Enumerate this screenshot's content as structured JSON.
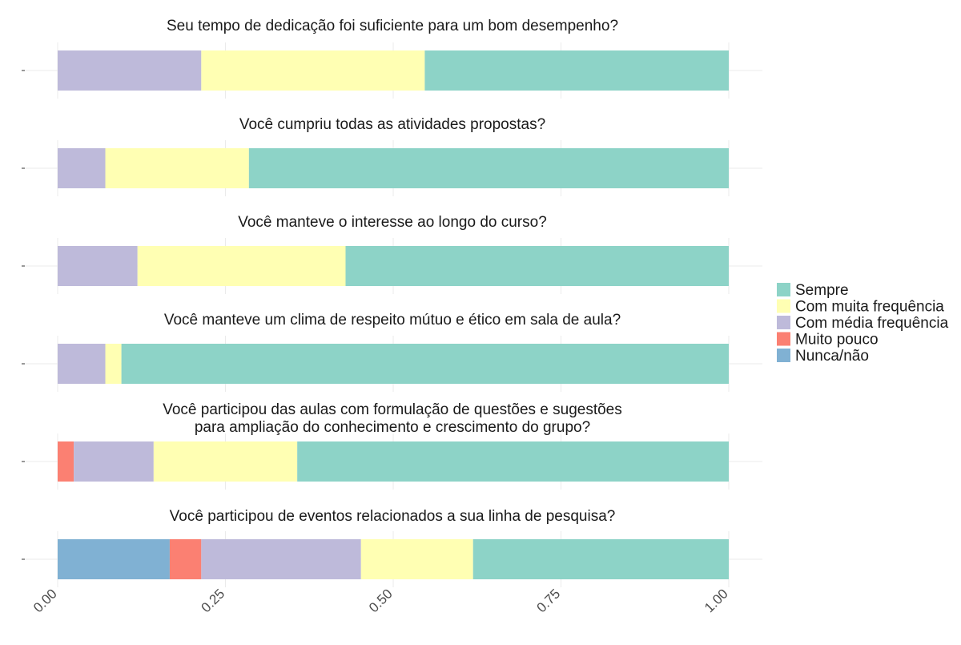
{
  "chart_data": {
    "type": "bar",
    "orientation": "horizontal",
    "stacked": true,
    "xlim": [
      0,
      1
    ],
    "x_ticks": [
      0,
      0.25,
      0.5,
      0.75,
      1
    ],
    "x_tick_labels": [
      "0.00",
      "0.25",
      "0.50",
      "0.75",
      "1.00"
    ],
    "xlabel": "",
    "ylabel": "",
    "grid": true,
    "legend_position": "right",
    "stack_order": [
      "Nunca/não",
      "Muito pouco",
      "Com média frequência",
      "Com muita frequência",
      "Sempre"
    ],
    "legend": [
      {
        "name": "Sempre",
        "color": "#8DD3C7"
      },
      {
        "name": "Com muita frequência",
        "color": "#FFFFB3"
      },
      {
        "name": "Com média frequência",
        "color": "#BEBADA"
      },
      {
        "name": "Muito pouco",
        "color": "#FB8072"
      },
      {
        "name": "Nunca/não",
        "color": "#80B1D3"
      }
    ],
    "panels": [
      {
        "title_lines": [
          "Seu tempo de dedicação foi suficiente para um bom desempenho?"
        ],
        "values": {
          "Nunca/não": 0,
          "Muito pouco": 0,
          "Com média frequência": 0.214,
          "Com muita frequência": 0.333,
          "Sempre": 0.453
        }
      },
      {
        "title_lines": [
          "Você cumpriu todas as atividades propostas?"
        ],
        "values": {
          "Nunca/não": 0,
          "Muito pouco": 0,
          "Com média frequência": 0.071,
          "Com muita frequência": 0.214,
          "Sempre": 0.715
        }
      },
      {
        "title_lines": [
          "Você manteve o interesse ao longo do curso?"
        ],
        "values": {
          "Nunca/não": 0,
          "Muito pouco": 0,
          "Com média frequência": 0.119,
          "Com muita frequência": 0.31,
          "Sempre": 0.571
        }
      },
      {
        "title_lines": [
          "Você manteve um clima de respeito mútuo e ético em sala de aula?"
        ],
        "values": {
          "Nunca/não": 0,
          "Muito pouco": 0,
          "Com média frequência": 0.071,
          "Com muita frequência": 0.024,
          "Sempre": 0.905
        }
      },
      {
        "title_lines": [
          "Você participou das aulas com formulação de questões e sugestões",
          "para ampliação do conhecimento e crescimento do grupo?"
        ],
        "values": {
          "Nunca/não": 0,
          "Muito pouco": 0.024,
          "Com média frequência": 0.119,
          "Com muita frequência": 0.214,
          "Sempre": 0.643
        }
      },
      {
        "title_lines": [
          "Você participou de eventos relacionados a sua linha de pesquisa?"
        ],
        "values": {
          "Nunca/não": 0.167,
          "Muito pouco": 0.047,
          "Com média frequência": 0.238,
          "Com muita frequência": 0.167,
          "Sempre": 0.381
        }
      }
    ]
  }
}
